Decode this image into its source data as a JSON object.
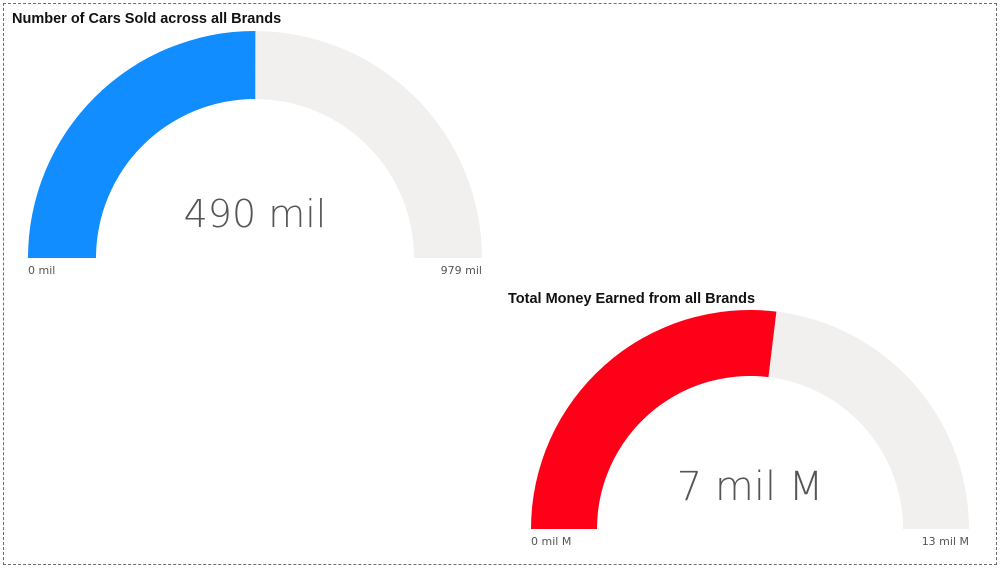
{
  "colors": {
    "track": "#f1f0ef",
    "text": "#555555",
    "title": "#111111"
  },
  "chart_data": [
    {
      "type": "gauge",
      "title": "Number of Cars Sold across all Brands",
      "value": 490,
      "min": 0,
      "max": 979,
      "unit": "mil",
      "value_label": "490 mil",
      "min_label": "0 mil",
      "max_label": "979 mil",
      "fill_color": "#118dff"
    },
    {
      "type": "gauge",
      "title": "Total Money Earned from all Brands",
      "value": 7,
      "min": 0,
      "max": 13,
      "unit": "mil M",
      "value_label": "7 mil M",
      "min_label": "0 mil M",
      "max_label": "13 mil M",
      "fill_color": "#ff0019"
    }
  ]
}
